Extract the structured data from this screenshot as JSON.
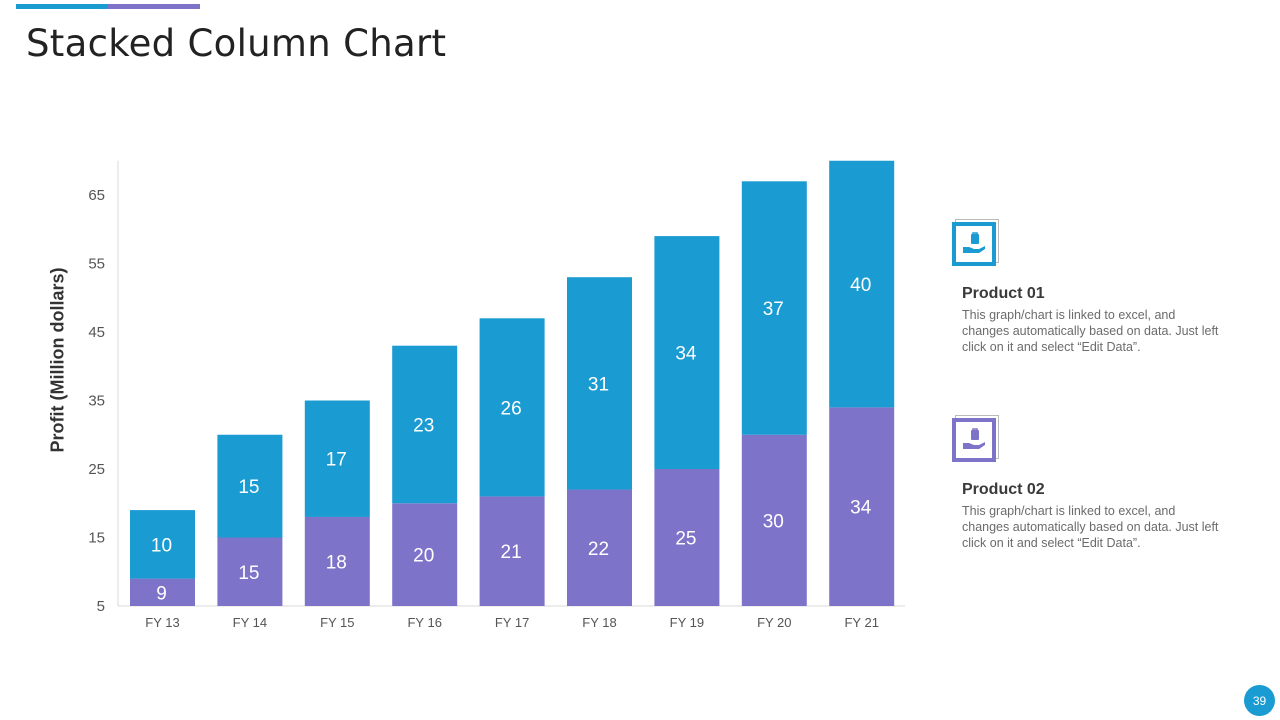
{
  "slide": {
    "title": "Stacked Column Chart",
    "page_number": "39",
    "colors": {
      "accent_blue": "#1a9bd1",
      "accent_purple": "#7d74c9"
    }
  },
  "legend": [
    {
      "title": "Product 01",
      "description": "This graph/chart is linked to excel, and changes automatically based on data. Just left click on it and select “Edit Data”.",
      "icon": "hand-holding-bag-icon",
      "color": "#1a9bd1"
    },
    {
      "title": "Product 02",
      "description": "This graph/chart is linked to excel, and changes automatically based on data. Just left click on it and select “Edit Data”.",
      "icon": "hand-holding-bag-icon",
      "color": "#7d74c9"
    }
  ],
  "chart_data": {
    "type": "bar",
    "stacked": true,
    "title": "",
    "xlabel": "",
    "ylabel": "Profit  (Million dollars)",
    "categories": [
      "FY 13",
      "FY 14",
      "FY 15",
      "FY 16",
      "FY 17",
      "FY 18",
      "FY 19",
      "FY 20",
      "FY 21"
    ],
    "series": [
      {
        "name": "Product 02",
        "color": "#7d74c9",
        "values": [
          9,
          15,
          18,
          20,
          21,
          22,
          25,
          30,
          34
        ]
      },
      {
        "name": "Product 01",
        "color": "#1a9bd1",
        "values": [
          10,
          15,
          17,
          23,
          26,
          31,
          34,
          37,
          40
        ]
      }
    ],
    "yticks": [
      5,
      15,
      25,
      35,
      45,
      55,
      65
    ],
    "ylim": [
      5,
      70
    ],
    "grid": false,
    "legend_position": "right"
  }
}
